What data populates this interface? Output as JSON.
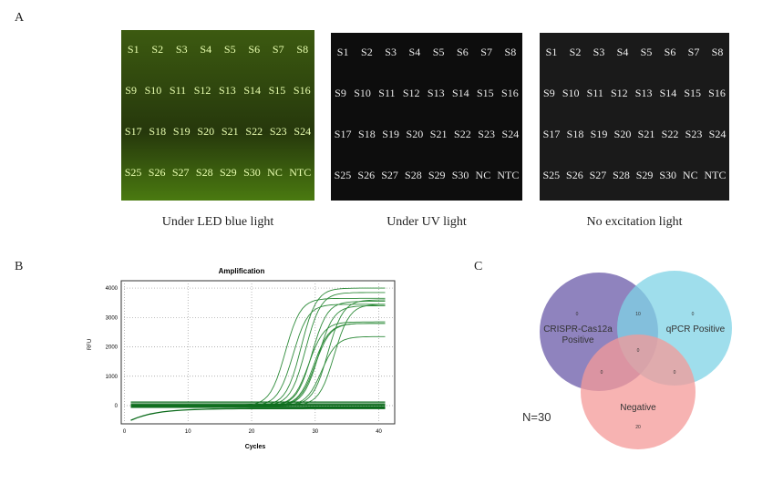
{
  "panelA": {
    "label": "A",
    "photos": [
      {
        "caption": "Under LED blue light",
        "bg": "#2a3a10",
        "text_color": "#e9ffb0",
        "rows": [
          [
            "S1",
            "S2",
            "S3",
            "S4",
            "S5",
            "S6",
            "S7",
            "S8"
          ],
          [
            "S9",
            "S10",
            "S11",
            "S12",
            "S13",
            "S14",
            "S15",
            "S16"
          ],
          [
            "S17",
            "S18",
            "S19",
            "S20",
            "S21",
            "S22",
            "S23",
            "S24"
          ],
          [
            "S25",
            "S26",
            "S27",
            "S28",
            "S29",
            "S30",
            "NC",
            "NTC"
          ]
        ]
      },
      {
        "caption": "Under UV light",
        "bg": "#0d0d0d",
        "text_color": "#e8e8e8",
        "rows": [
          [
            "S1",
            "S2",
            "S3",
            "S4",
            "S5",
            "S6",
            "S7",
            "S8"
          ],
          [
            "S9",
            "S10",
            "S11",
            "S12",
            "S13",
            "S14",
            "S15",
            "S16"
          ],
          [
            "S17",
            "S18",
            "S19",
            "S20",
            "S21",
            "S22",
            "S23",
            "S24"
          ],
          [
            "S25",
            "S26",
            "S27",
            "S28",
            "S29",
            "S30",
            "NC",
            "NTC"
          ]
        ]
      },
      {
        "caption": "No excitation light",
        "bg": "#1a1a1a",
        "text_color": "#f0f0f0",
        "rows": [
          [
            "S1",
            "S2",
            "S3",
            "S4",
            "S5",
            "S6",
            "S7",
            "S8"
          ],
          [
            "S9",
            "S10",
            "S11",
            "S12",
            "S13",
            "S14",
            "S15",
            "S16"
          ],
          [
            "S17",
            "S18",
            "S19",
            "S20",
            "S21",
            "S22",
            "S23",
            "S24"
          ],
          [
            "S25",
            "S26",
            "S27",
            "S28",
            "S29",
            "S30",
            "NC",
            "NTC"
          ]
        ]
      }
    ]
  },
  "panelB": {
    "label": "B"
  },
  "chart_data": {
    "type": "line",
    "title": "Amplification",
    "xlabel": "Cycles",
    "ylabel": "RFU",
    "xlim": [
      -0.5,
      42.5
    ],
    "ylim": [
      -620,
      4250
    ],
    "xticks": [
      "0",
      "10",
      "20",
      "30",
      "40"
    ],
    "yticks": [
      "0",
      "1000",
      "2000",
      "3000",
      "4000"
    ],
    "grid": true,
    "line_color": "#2e8b3a",
    "amplified_curves": [
      {
        "midpoint_cycle": 25.3,
        "plateau_rfu": 3650
      },
      {
        "midpoint_cycle": 26.5,
        "plateau_rfu": 3450
      },
      {
        "midpoint_cycle": 27.8,
        "plateau_rfu": 4000
      },
      {
        "midpoint_cycle": 28.5,
        "plateau_rfu": 3850
      },
      {
        "midpoint_cycle": 29.0,
        "plateau_rfu": 2850
      },
      {
        "midpoint_cycle": 29.5,
        "plateau_rfu": 3550
      },
      {
        "midpoint_cycle": 29.8,
        "plateau_rfu": 2800
      },
      {
        "midpoint_cycle": 30.0,
        "plateau_rfu": 2800
      },
      {
        "midpoint_cycle": 30.5,
        "plateau_rfu": 3400
      },
      {
        "midpoint_cycle": 31.0,
        "plateau_rfu": 2350
      },
      {
        "midpoint_cycle": 32.0,
        "plateau_rfu": 3600
      },
      {
        "midpoint_cycle": 33.0,
        "plateau_rfu": 3450
      }
    ],
    "baseline_rfu": [
      120,
      60,
      20,
      -30,
      -60,
      -100
    ]
  },
  "panelC": {
    "label": "C",
    "n_label": "N=30",
    "sets": [
      {
        "name": "CRISPR-Cas12a",
        "name2": "Positive",
        "color": "#6a5aa8"
      },
      {
        "name": "qPCR Positive",
        "color": "#7fd3e6"
      },
      {
        "name": "Negative",
        "color": "#f49a98"
      }
    ],
    "counts": {
      "crispr_only": "0",
      "qpcr_only": "0",
      "crispr_qpcr": "10",
      "all": "0",
      "crispr_neg": "0",
      "qpcr_neg": "0",
      "neg_only": "20"
    }
  }
}
